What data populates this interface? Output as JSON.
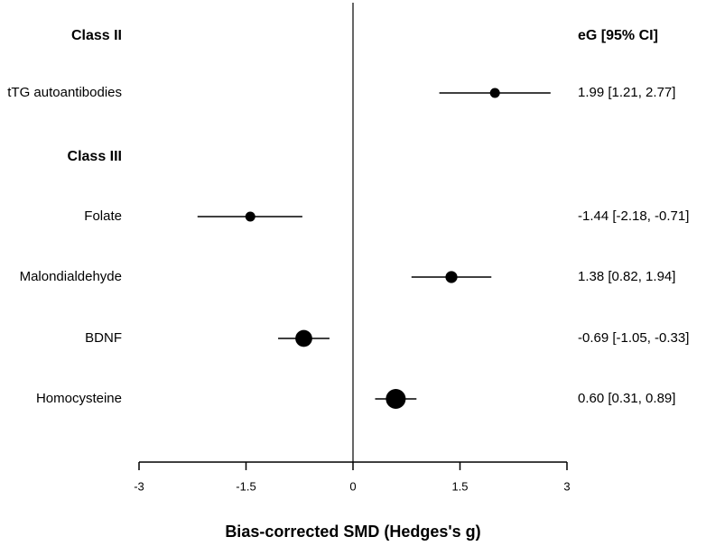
{
  "chart_data": {
    "type": "forest",
    "x_label": "Bias-corrected SMD (Hedges's g)",
    "xlim": [
      -3,
      3
    ],
    "ticks": [
      {
        "value": -3,
        "label": "-3"
      },
      {
        "value": -1.5,
        "label": "-1.5"
      },
      {
        "value": 0,
        "label": "0"
      },
      {
        "value": 1.5,
        "label": "1.5"
      },
      {
        "value": 3,
        "label": "3"
      }
    ],
    "effect_column_header": "eG [95% CI]",
    "rows": [
      {
        "kind": "group",
        "label": "Class II"
      },
      {
        "kind": "study",
        "label": "tTG autoantibodies",
        "estimate": 1.99,
        "lower": 1.21,
        "upper": 2.77,
        "weight_size": 1,
        "effect_text": "1.99 [1.21, 2.77]"
      },
      {
        "kind": "group",
        "label": "Class III"
      },
      {
        "kind": "study",
        "label": "Folate",
        "estimate": -1.44,
        "lower": -2.18,
        "upper": -0.71,
        "weight_size": 1,
        "effect_text": "-1.44 [-2.18, -0.71]"
      },
      {
        "kind": "study",
        "label": "Malondialdehyde",
        "estimate": 1.38,
        "lower": 0.82,
        "upper": 1.94,
        "weight_size": 1.2,
        "effect_text": "1.38 [0.82, 1.94]"
      },
      {
        "kind": "study",
        "label": "BDNF",
        "estimate": -0.69,
        "lower": -1.05,
        "upper": -0.33,
        "weight_size": 1.7,
        "effect_text": "-0.69 [-1.05, -0.33]"
      },
      {
        "kind": "study",
        "label": "Homocysteine",
        "estimate": 0.6,
        "lower": 0.31,
        "upper": 0.89,
        "weight_size": 2.0,
        "effect_text": "0.60 [0.31, 0.89]"
      }
    ]
  }
}
